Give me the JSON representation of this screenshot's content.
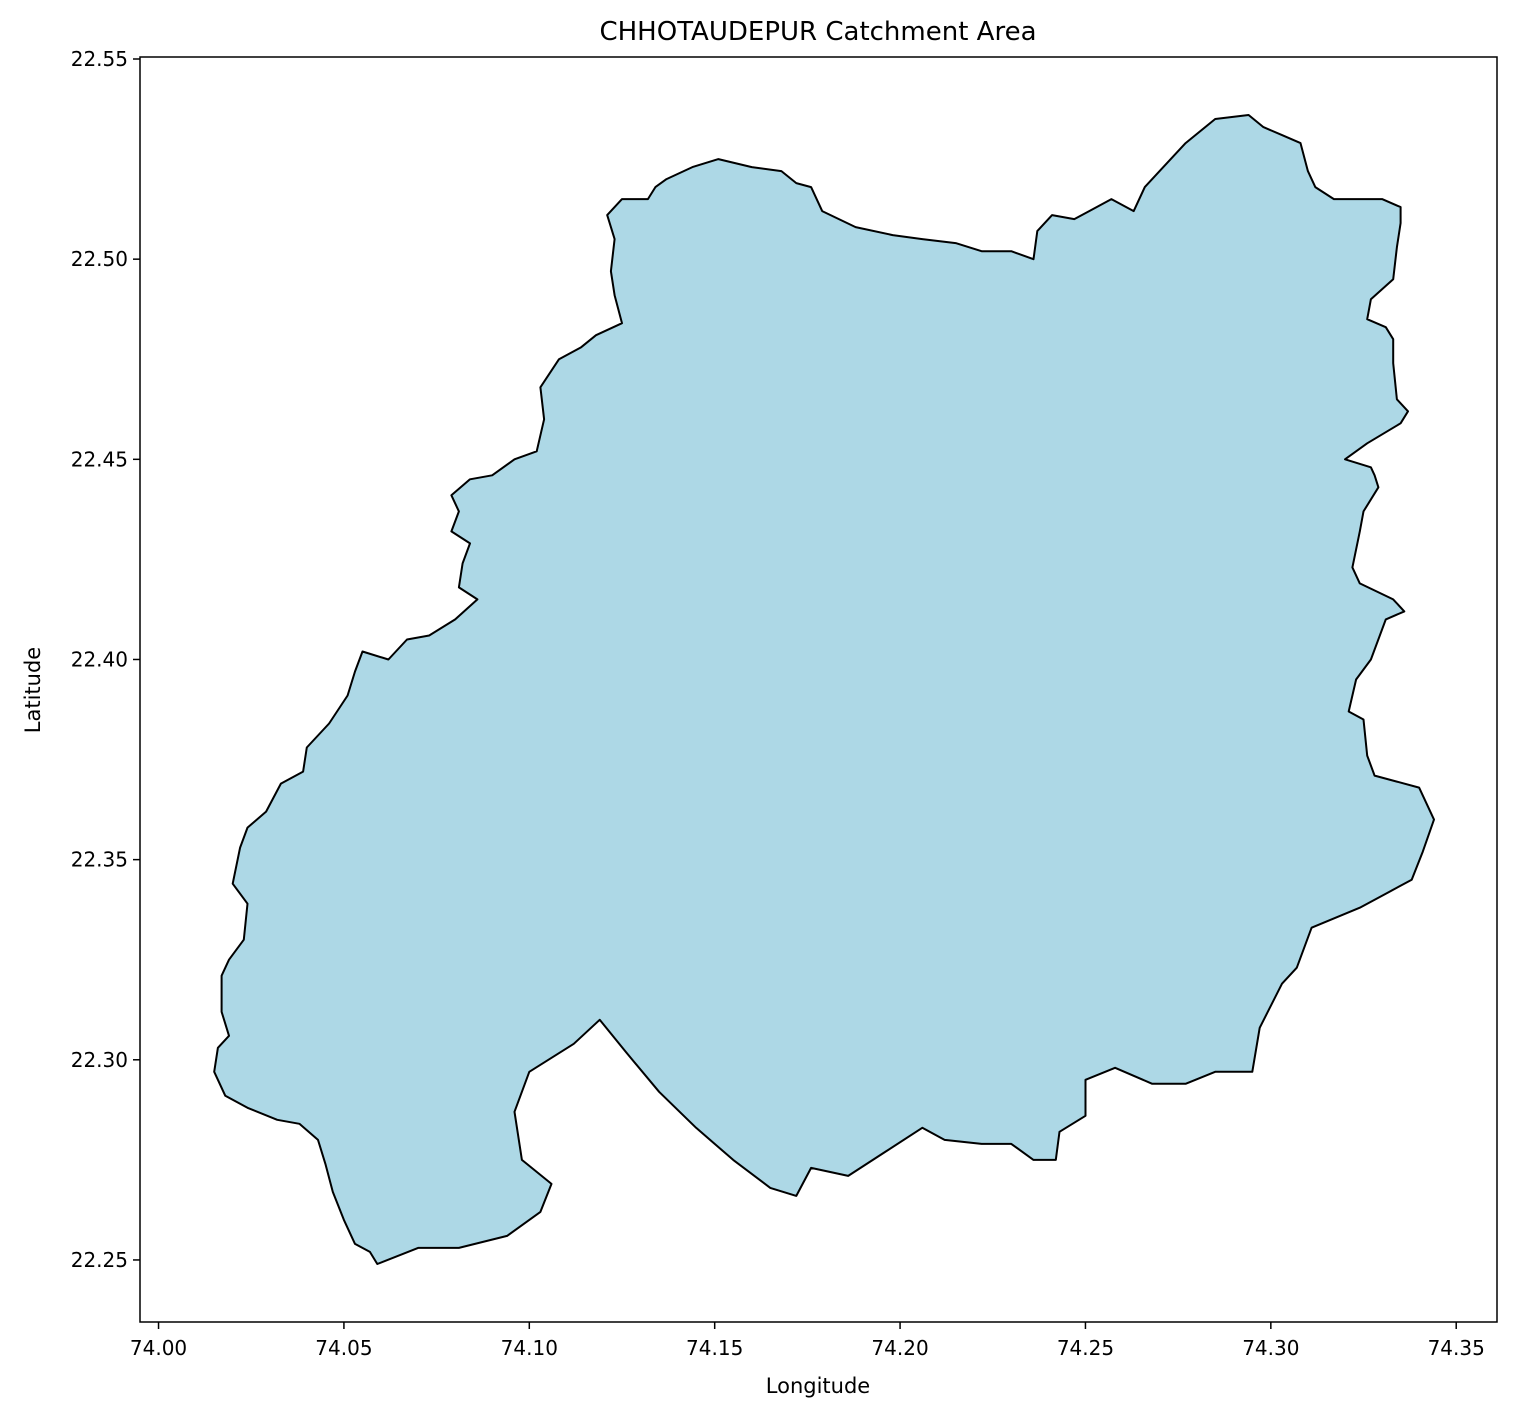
{
  "chart_data": {
    "type": "area",
    "title": "CHHOTAUDEPUR Catchment Area",
    "xlabel": "Longitude",
    "ylabel": "Latitude",
    "xlim": [
      73.995,
      74.361
    ],
    "ylim": [
      22.2345,
      22.5505
    ],
    "xticks": [
      74.0,
      74.05,
      74.1,
      74.15,
      74.2,
      74.25,
      74.3,
      74.35
    ],
    "xtick_labels": [
      "74.00",
      "74.05",
      "74.10",
      "74.15",
      "74.20",
      "74.25",
      "74.30",
      "74.35"
    ],
    "yticks": [
      22.25,
      22.3,
      22.35,
      22.4,
      22.45,
      22.5,
      22.55
    ],
    "ytick_labels": [
      "22.25",
      "22.30",
      "22.35",
      "22.40",
      "22.45",
      "22.50",
      "22.55"
    ],
    "grid": false,
    "fill_color": "#add8e6",
    "edge_color": "#000000",
    "boundary": [
      [
        74.059,
        22.249
      ],
      [
        74.07,
        22.253
      ],
      [
        74.081,
        22.253
      ],
      [
        74.094,
        22.256
      ],
      [
        74.103,
        22.262
      ],
      [
        74.106,
        22.269
      ],
      [
        74.098,
        22.275
      ],
      [
        74.096,
        22.287
      ],
      [
        74.1,
        22.297
      ],
      [
        74.112,
        22.304
      ],
      [
        74.119,
        22.31
      ],
      [
        74.126,
        22.302
      ],
      [
        74.135,
        22.292
      ],
      [
        74.145,
        22.283
      ],
      [
        74.155,
        22.275
      ],
      [
        74.165,
        22.268
      ],
      [
        74.172,
        22.266
      ],
      [
        74.176,
        22.273
      ],
      [
        74.186,
        22.271
      ],
      [
        74.196,
        22.277
      ],
      [
        74.206,
        22.283
      ],
      [
        74.212,
        22.28
      ],
      [
        74.222,
        22.279
      ],
      [
        74.23,
        22.279
      ],
      [
        74.236,
        22.275
      ],
      [
        74.242,
        22.275
      ],
      [
        74.243,
        22.282
      ],
      [
        74.25,
        22.286
      ],
      [
        74.25,
        22.295
      ],
      [
        74.258,
        22.298
      ],
      [
        74.268,
        22.294
      ],
      [
        74.277,
        22.294
      ],
      [
        74.285,
        22.297
      ],
      [
        74.295,
        22.297
      ],
      [
        74.297,
        22.308
      ],
      [
        74.303,
        22.319
      ],
      [
        74.307,
        22.323
      ],
      [
        74.311,
        22.333
      ],
      [
        74.324,
        22.338
      ],
      [
        74.332,
        22.342
      ],
      [
        74.338,
        22.345
      ],
      [
        74.341,
        22.352
      ],
      [
        74.344,
        22.36
      ],
      [
        74.34,
        22.368
      ],
      [
        74.328,
        22.371
      ],
      [
        74.326,
        22.376
      ],
      [
        74.325,
        22.385
      ],
      [
        74.321,
        22.387
      ],
      [
        74.323,
        22.395
      ],
      [
        74.327,
        22.4
      ],
      [
        74.331,
        22.41
      ],
      [
        74.336,
        22.412
      ],
      [
        74.333,
        22.415
      ],
      [
        74.324,
        22.419
      ],
      [
        74.322,
        22.423
      ],
      [
        74.324,
        22.432
      ],
      [
        74.325,
        22.437
      ],
      [
        74.329,
        22.443
      ],
      [
        74.328,
        22.446
      ],
      [
        74.327,
        22.448
      ],
      [
        74.32,
        22.45
      ],
      [
        74.326,
        22.454
      ],
      [
        74.335,
        22.459
      ],
      [
        74.337,
        22.462
      ],
      [
        74.334,
        22.465
      ],
      [
        74.333,
        22.474
      ],
      [
        74.333,
        22.48
      ],
      [
        74.331,
        22.483
      ],
      [
        74.326,
        22.485
      ],
      [
        74.327,
        22.49
      ],
      [
        74.333,
        22.495
      ],
      [
        74.334,
        22.503
      ],
      [
        74.335,
        22.509
      ],
      [
        74.335,
        22.513
      ],
      [
        74.33,
        22.515
      ],
      [
        74.322,
        22.515
      ],
      [
        74.317,
        22.515
      ],
      [
        74.312,
        22.518
      ],
      [
        74.31,
        22.522
      ],
      [
        74.308,
        22.529
      ],
      [
        74.303,
        22.531
      ],
      [
        74.298,
        22.533
      ],
      [
        74.294,
        22.536
      ],
      [
        74.285,
        22.535
      ],
      [
        74.277,
        22.529
      ],
      [
        74.27,
        22.522
      ],
      [
        74.266,
        22.518
      ],
      [
        74.263,
        22.512
      ],
      [
        74.257,
        22.515
      ],
      [
        74.251,
        22.512
      ],
      [
        74.247,
        22.51
      ],
      [
        74.241,
        22.511
      ],
      [
        74.237,
        22.507
      ],
      [
        74.236,
        22.5
      ],
      [
        74.23,
        22.502
      ],
      [
        74.222,
        22.502
      ],
      [
        74.215,
        22.504
      ],
      [
        74.206,
        22.505
      ],
      [
        74.198,
        22.506
      ],
      [
        74.188,
        22.508
      ],
      [
        74.179,
        22.512
      ],
      [
        74.176,
        22.518
      ],
      [
        74.172,
        22.519
      ],
      [
        74.168,
        22.522
      ],
      [
        74.16,
        22.523
      ],
      [
        74.151,
        22.525
      ],
      [
        74.144,
        22.523
      ],
      [
        74.137,
        22.52
      ],
      [
        74.134,
        22.518
      ],
      [
        74.132,
        22.515
      ],
      [
        74.125,
        22.515
      ],
      [
        74.121,
        22.511
      ],
      [
        74.123,
        22.505
      ],
      [
        74.122,
        22.497
      ],
      [
        74.123,
        22.491
      ],
      [
        74.125,
        22.484
      ],
      [
        74.118,
        22.481
      ],
      [
        74.114,
        22.478
      ],
      [
        74.108,
        22.475
      ],
      [
        74.103,
        22.468
      ],
      [
        74.104,
        22.46
      ],
      [
        74.102,
        22.452
      ],
      [
        74.096,
        22.45
      ],
      [
        74.09,
        22.446
      ],
      [
        74.084,
        22.445
      ],
      [
        74.079,
        22.441
      ],
      [
        74.081,
        22.437
      ],
      [
        74.079,
        22.432
      ],
      [
        74.084,
        22.429
      ],
      [
        74.082,
        22.424
      ],
      [
        74.081,
        22.418
      ],
      [
        74.086,
        22.415
      ],
      [
        74.08,
        22.41
      ],
      [
        74.073,
        22.406
      ],
      [
        74.067,
        22.405
      ],
      [
        74.062,
        22.4
      ],
      [
        74.055,
        22.402
      ],
      [
        74.053,
        22.397
      ],
      [
        74.051,
        22.391
      ],
      [
        74.046,
        22.384
      ],
      [
        74.04,
        22.378
      ],
      [
        74.039,
        22.372
      ],
      [
        74.033,
        22.369
      ],
      [
        74.029,
        22.362
      ],
      [
        74.024,
        22.358
      ],
      [
        74.022,
        22.353
      ],
      [
        74.02,
        22.344
      ],
      [
        74.024,
        22.339
      ],
      [
        74.023,
        22.33
      ],
      [
        74.019,
        22.325
      ],
      [
        74.017,
        22.321
      ],
      [
        74.017,
        22.312
      ],
      [
        74.019,
        22.306
      ],
      [
        74.016,
        22.303
      ],
      [
        74.015,
        22.297
      ],
      [
        74.018,
        22.291
      ],
      [
        74.024,
        22.288
      ],
      [
        74.032,
        22.285
      ],
      [
        74.038,
        22.284
      ],
      [
        74.043,
        22.28
      ],
      [
        74.045,
        22.274
      ],
      [
        74.047,
        22.267
      ],
      [
        74.05,
        22.26
      ],
      [
        74.053,
        22.254
      ],
      [
        74.057,
        22.252
      ]
    ]
  }
}
